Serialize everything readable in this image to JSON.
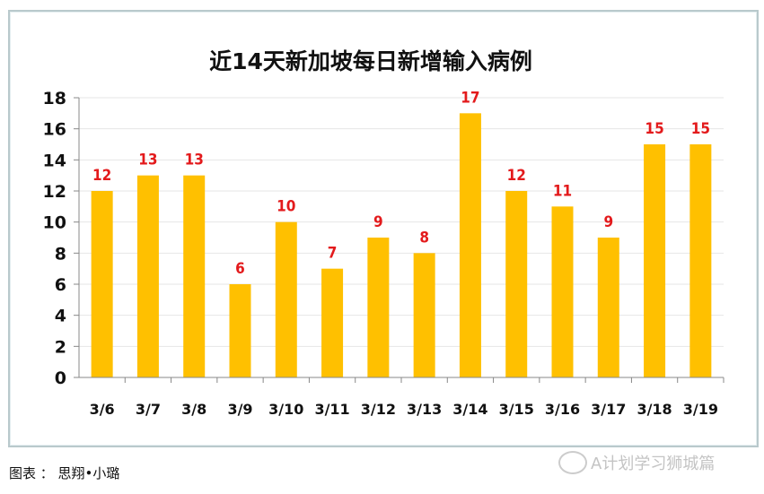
{
  "chart_data": {
    "type": "bar",
    "title": "近14天新加坡每日新增输入病例",
    "categories": [
      "3/6",
      "3/7",
      "3/8",
      "3/9",
      "3/10",
      "3/11",
      "3/12",
      "3/13",
      "3/14",
      "3/15",
      "3/16",
      "3/17",
      "3/18",
      "3/19"
    ],
    "values": [
      12,
      13,
      13,
      6,
      10,
      7,
      9,
      8,
      17,
      12,
      11,
      9,
      15,
      15
    ],
    "ylim": [
      0,
      18
    ],
    "yticks": [
      0,
      2,
      4,
      6,
      8,
      10,
      12,
      14,
      16,
      18
    ],
    "grid": true,
    "bar_color": "#ffc000",
    "label_color": "#e31a1c",
    "xlabel": "",
    "ylabel": ""
  },
  "caption": "图表 ： 思翔•小璐",
  "watermark": "A计划学习狮城篇"
}
